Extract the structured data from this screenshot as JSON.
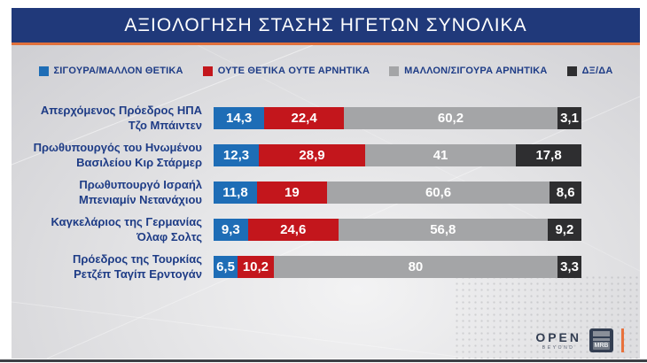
{
  "header": {
    "title": "ΑΞΙΟΛΟΓΗΣΗ ΣΤΑΣΗΣ ΗΓΕΤΩΝ ΣΥΝΟΛΙΚΑ"
  },
  "legend": {
    "items": [
      {
        "label": "ΣΙΓΟΥΡΑ/ΜΑΛΛΟΝ ΘΕΤΙΚΑ",
        "color": "#1e6db6"
      },
      {
        "label": "ΟΥΤΕ ΘΕΤΙΚΑ ΟΥΤΕ ΑΡΝΗΤΙΚΑ",
        "color": "#c3161c"
      },
      {
        "label": "ΜΑΛΛΟΝ/ΣΙΓΟΥΡΑ ΑΡΝΗΤΙΚΑ",
        "color": "#a4a5a7"
      },
      {
        "label": "ΔΞ/ΔΑ",
        "color": "#2e2e30"
      }
    ]
  },
  "chart_data": {
    "type": "bar",
    "orientation": "horizontal",
    "stacked": true,
    "title": "ΑΞΙΟΛΟΓΗΣΗ ΣΤΑΣΗΣ ΗΓΕΤΩΝ ΣΥΝΟΛΙΚΑ",
    "xlim": [
      0,
      100
    ],
    "unit": "%",
    "decimal_separator": ",",
    "legend_position": "top",
    "grid": false,
    "categories": [
      "Απερχόμενος Πρόεδρος ΗΠΑ Τζο Μπάιντεν",
      "Πρωθυπουργός του Ηνωμένου Βασιλείου Κιρ Στάρμερ",
      "Πρωθυπουργό Ισραήλ Μπενιαμίν Νετανάχιου",
      "Καγκελάριος της Γερμανίας Όλαφ Σολτς",
      "Πρόεδρος της Τουρκίας Ρετζέπ Ταγίπ Ερντογάν"
    ],
    "category_lines": [
      [
        "Απερχόμενος Πρόεδρος ΗΠΑ",
        "Τζο Μπάιντεν"
      ],
      [
        "Πρωθυπουργός του Ηνωμένου",
        "Βασιλείου Κιρ Στάρμερ"
      ],
      [
        "Πρωθυπουργό Ισραήλ",
        "Μπενιαμίν Νετανάχιου"
      ],
      [
        "Καγκελάριος της Γερμανίας",
        "Όλαφ Σολτς"
      ],
      [
        "Πρόεδρος της Τουρκίας",
        "Ρετζέπ Ταγίπ Ερντογάν"
      ]
    ],
    "series": [
      {
        "name": "ΣΙΓΟΥΡΑ/ΜΑΛΛΟΝ ΘΕΤΙΚΑ",
        "color": "#1e6db6",
        "values": [
          14.3,
          12.3,
          11.8,
          9.3,
          6.5
        ]
      },
      {
        "name": "ΟΥΤΕ ΘΕΤΙΚΑ ΟΥΤΕ ΑΡΝΗΤΙΚΑ",
        "color": "#c3161c",
        "values": [
          22.4,
          28.9,
          19,
          24.6,
          10.2
        ]
      },
      {
        "name": "ΜΑΛΛΟΝ/ΣΙΓΟΥΡΑ ΑΡΝΗΤΙΚΑ",
        "color": "#a4a5a7",
        "values": [
          60.2,
          41,
          60.6,
          56.8,
          80
        ]
      },
      {
        "name": "ΔΞ/ΔΑ",
        "color": "#2e2e30",
        "values": [
          3.1,
          17.8,
          8.6,
          9.2,
          3.3
        ]
      }
    ],
    "value_labels_displayed": [
      [
        "14,3",
        "22,4",
        "60,2",
        "3,1"
      ],
      [
        "12,3",
        "28,9",
        "41",
        "17,8"
      ],
      [
        "11,8",
        "19",
        "60,6",
        "8,6"
      ],
      [
        "9,3",
        "24,6",
        "56,8",
        "9,2"
      ],
      [
        "6,5",
        "10,2",
        "80",
        "3,3"
      ]
    ]
  },
  "footer": {
    "open_logo_text": "OPEN",
    "open_logo_subtext": "BEYOND",
    "mrb_logo_text": "MRB"
  },
  "colors": {
    "header_bg": "#20397a",
    "accent_line": "#e0713c",
    "label_text": "#1e3c86",
    "positive_blue": "#1e6db6",
    "neutral_red": "#c3161c",
    "negative_gray": "#a4a5a7",
    "dk_da_dark": "#2e2e30"
  }
}
